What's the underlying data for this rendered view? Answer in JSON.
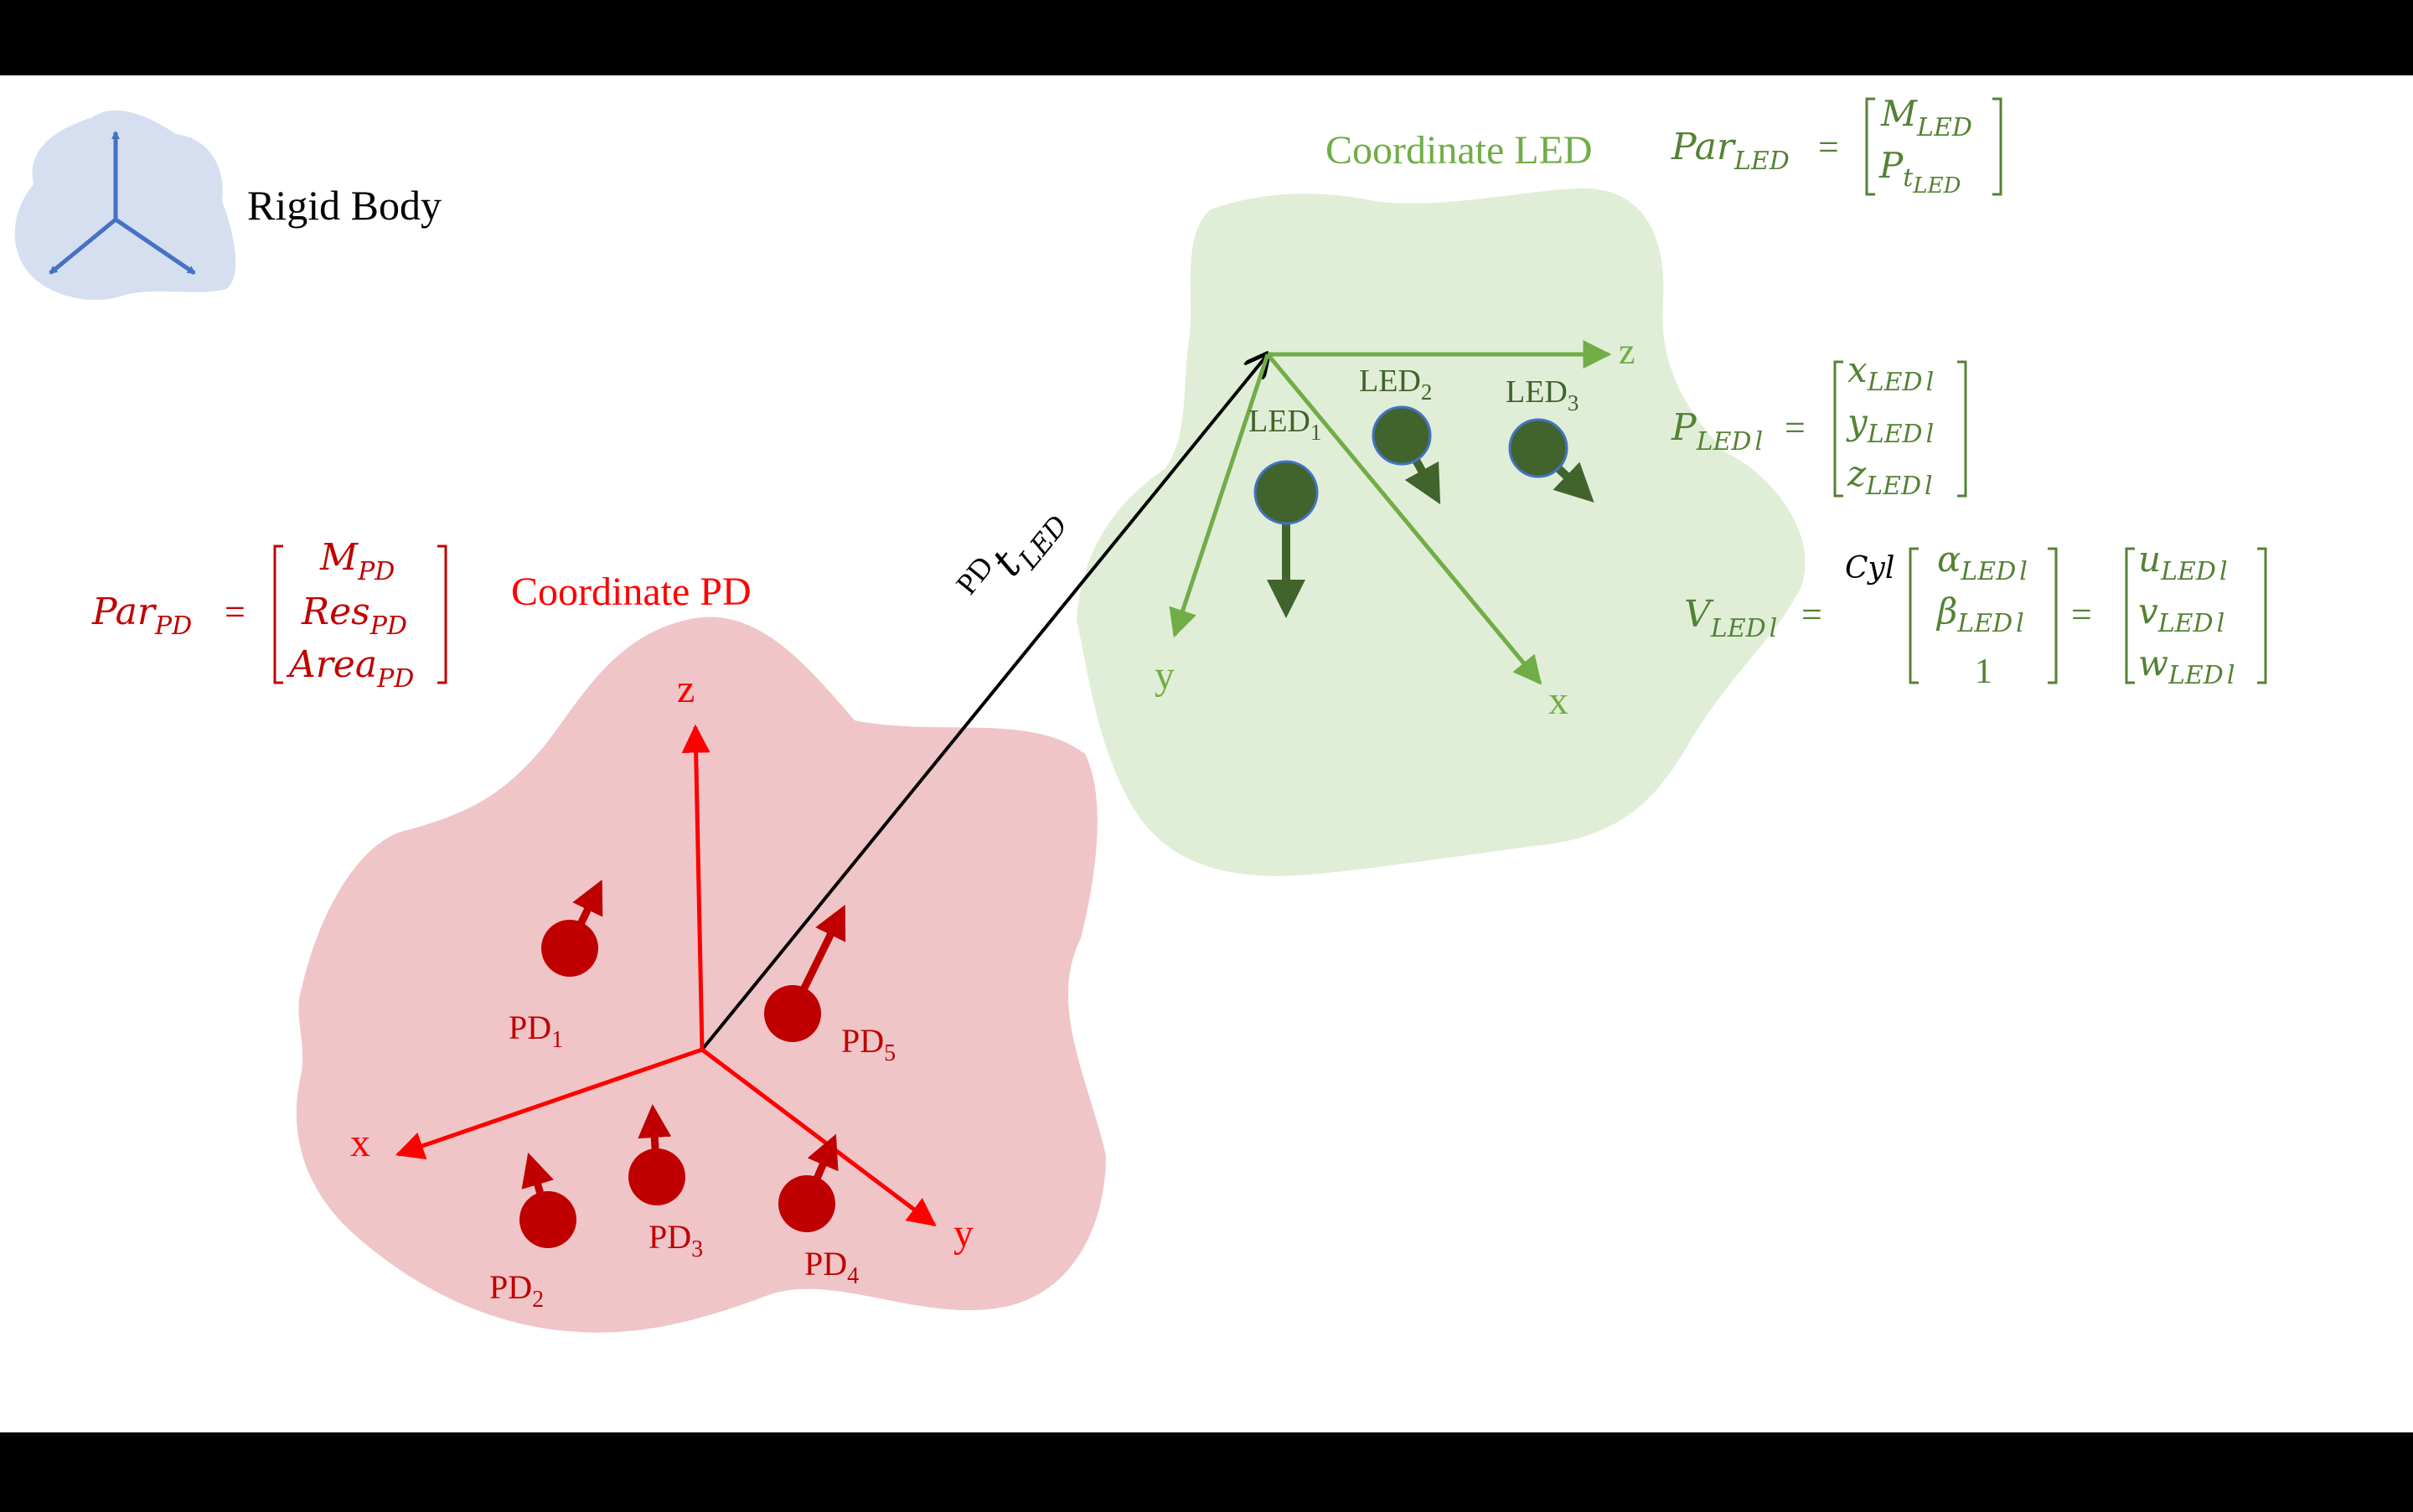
{
  "legend": {
    "label": "Rigid Body",
    "icon": "rigid-body-axes-icon"
  },
  "pd": {
    "title": "Coordinate PD",
    "axes": {
      "x": "x",
      "y": "y",
      "z": "z"
    },
    "devices": [
      {
        "base": "PD",
        "sub": "1"
      },
      {
        "base": "PD",
        "sub": "2"
      },
      {
        "base": "PD",
        "sub": "3"
      },
      {
        "base": "PD",
        "sub": "4"
      },
      {
        "base": "PD",
        "sub": "5"
      }
    ],
    "param": {
      "lhs": "Par",
      "lhs_sub": "PD",
      "rows": [
        {
          "base": "M",
          "sub": "PD"
        },
        {
          "base": "Res",
          "sub": "PD"
        },
        {
          "base": "Area",
          "sub": "PD"
        }
      ]
    }
  },
  "led": {
    "title": "Coordinate LED",
    "axes": {
      "x": "x",
      "y": "y",
      "z": "z"
    },
    "devices": [
      {
        "base": "LED",
        "sub": "1"
      },
      {
        "base": "LED",
        "sub": "2"
      },
      {
        "base": "LED",
        "sub": "3"
      }
    ],
    "param": {
      "lhs": "Par",
      "lhs_sub": "LED",
      "rows": [
        {
          "base": "M",
          "sub": "LED"
        },
        {
          "base": "P",
          "sub": "t",
          "subsub": "LED"
        }
      ]
    },
    "position": {
      "lhs": "P",
      "lhs_sub": "LED",
      "lhs_subsub": "l",
      "rows": [
        {
          "base": "x",
          "sub": "LED",
          "subsub": "l"
        },
        {
          "base": "y",
          "sub": "LED",
          "subsub": "l"
        },
        {
          "base": "z",
          "sub": "LED",
          "subsub": "l"
        }
      ]
    },
    "direction": {
      "lhs": "V",
      "lhs_sub": "LED",
      "lhs_subsub": "l",
      "prefix": "Cyl",
      "mid_rows": [
        {
          "base": "α",
          "sub": "LED",
          "subsub": "l"
        },
        {
          "base": "β",
          "sub": "LED",
          "subsub": "l"
        },
        {
          "base": "1"
        }
      ],
      "rhs_rows": [
        {
          "base": "u",
          "sub": "LED",
          "subsub": "l"
        },
        {
          "base": "v",
          "sub": "LED",
          "subsub": "l"
        },
        {
          "base": "w",
          "sub": "LED",
          "subsub": "l"
        }
      ]
    }
  },
  "translation": {
    "pre": "PD",
    "base": "t",
    "sub": "LED"
  },
  "colors": {
    "pd_fill": "#f0c5c8",
    "pd_axis": "#ff0000",
    "pd_text": "#c00000",
    "pd_device": "#c00000",
    "led_fill": "#e0eed7",
    "led_axis": "#70ad47",
    "led_text": "#548235",
    "led_device": "#41632c",
    "rigid_fill": "#d6dff0",
    "rigid_axis": "#4472c4",
    "vector": "#000000",
    "bars": "#000000",
    "bg": "#ffffff"
  }
}
